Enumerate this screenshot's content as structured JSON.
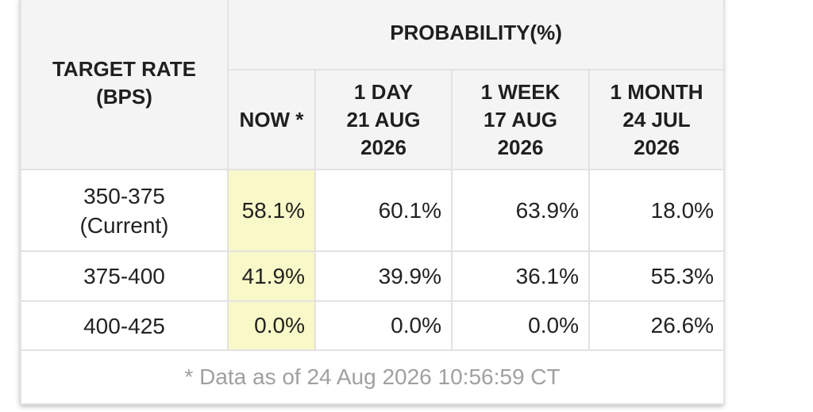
{
  "table": {
    "target_rate_header": [
      "TARGET RATE",
      "(BPS)"
    ],
    "probability_header": "PROBABILITY(%)",
    "columns": [
      {
        "lines": [
          "NOW *"
        ]
      },
      {
        "lines": [
          "1 DAY",
          "21 AUG",
          "2026"
        ]
      },
      {
        "lines": [
          "1 WEEK",
          "17 AUG",
          "2026"
        ]
      },
      {
        "lines": [
          "1 MONTH",
          "24 JUL",
          "2026"
        ]
      }
    ],
    "rows": [
      {
        "rate": [
          "350-375",
          "(Current)"
        ],
        "now": "58.1%",
        "day": "60.1%",
        "week": "63.9%",
        "month": "18.0%"
      },
      {
        "rate": [
          "375-400"
        ],
        "now": "41.9%",
        "day": "39.9%",
        "week": "36.1%",
        "month": "55.3%"
      },
      {
        "rate": [
          "400-425"
        ],
        "now": "0.0%",
        "day": "0.0%",
        "week": "0.0%",
        "month": "26.6%"
      }
    ],
    "footnote": "* Data as of 24 Aug 2026 10:56:59 CT"
  },
  "colors": {
    "now_highlight": "#f9f8c8",
    "header_bg": "#f4f4f4",
    "border": "#e2e2e2",
    "footnote_text": "#a0a0a0"
  }
}
